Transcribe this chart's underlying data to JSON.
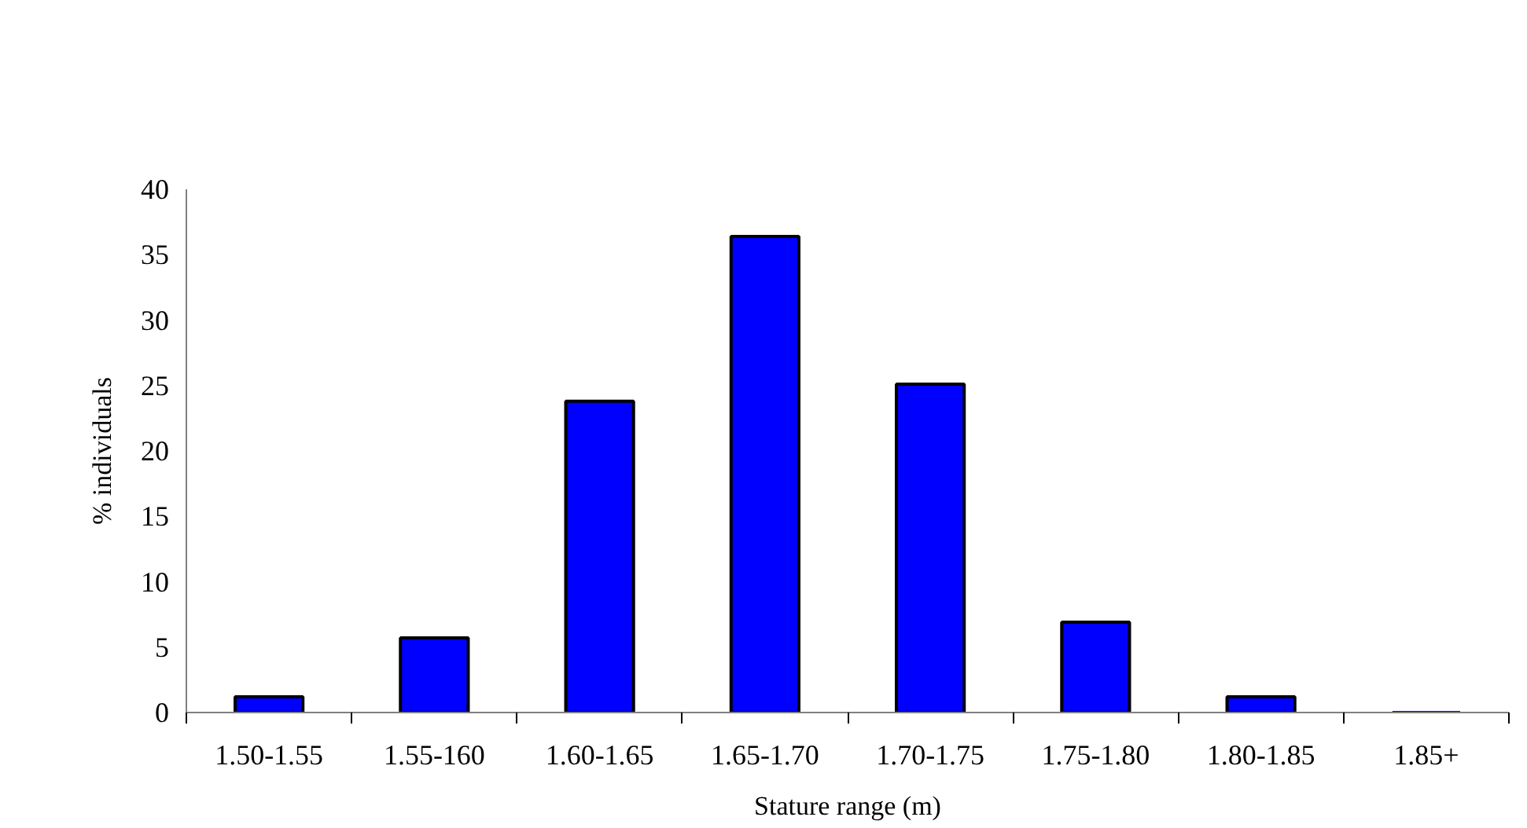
{
  "chart_data": {
    "type": "bar",
    "xlabel": "Stature range (m)",
    "ylabel": "% individuals",
    "categories": [
      "1.50-1.55",
      "1.55-160",
      "1.60-1.65",
      "1.65-1.70",
      "1.70-1.75",
      "1.75-1.80",
      "1.80-1.85",
      "1.85+"
    ],
    "values": [
      1.2,
      5.7,
      23.8,
      36.4,
      25.1,
      6.9,
      1.2,
      0
    ],
    "color": "#0000ff",
    "ylim": [
      0,
      40
    ],
    "yticks": [
      0,
      5,
      10,
      15,
      20,
      25,
      30,
      35,
      40
    ],
    "grid": false
  }
}
